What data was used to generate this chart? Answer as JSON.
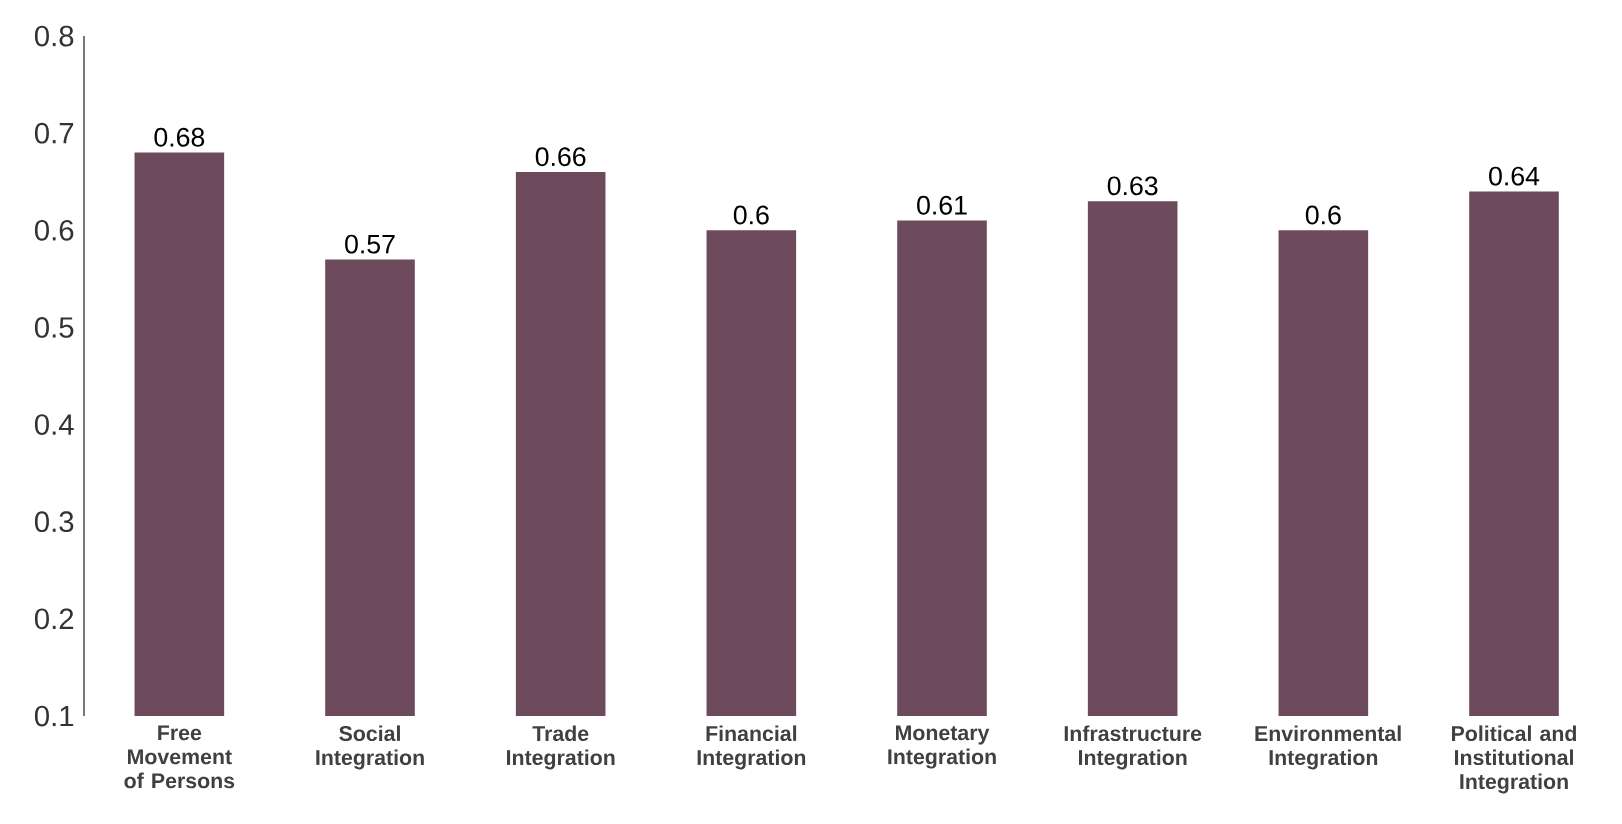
{
  "chart_data": {
    "type": "bar",
    "categories": [
      "Free Movement of Persons",
      "Social Integration",
      "Trade Integration",
      "Financial Integration",
      "Monetary Integration",
      "Infrastructure Integration",
      "Environmental Integration",
      "Political and Institutional Integration"
    ],
    "values": [
      0.68,
      0.57,
      0.66,
      0.6,
      0.61,
      0.63,
      0.6,
      0.64
    ],
    "color": "#6e4b5c",
    "ylim": [
      0.1,
      0.8
    ],
    "yticks": [
      0.1,
      0.2,
      0.3,
      0.4,
      0.5,
      0.6,
      0.7,
      0.8
    ],
    "data_labels": true
  }
}
